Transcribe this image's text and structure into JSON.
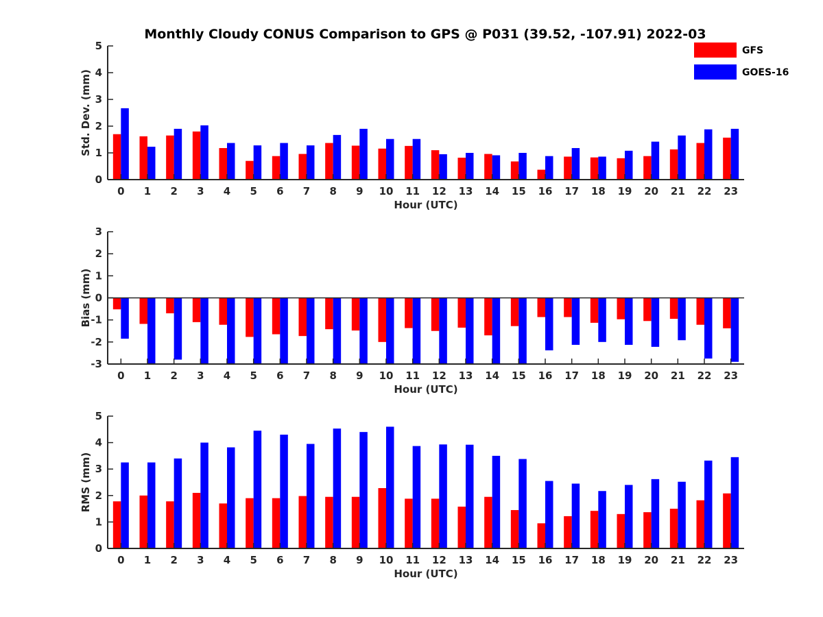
{
  "title": "Monthly Cloudy CONUS Comparison to GPS @ P031 (39.52, -107.91) 2022-03",
  "legend": {
    "placement": "top-right",
    "entries": [
      {
        "name": "GFS",
        "color": "#ff0000"
      },
      {
        "name": "GOES-16",
        "color": "#0000ff"
      }
    ]
  },
  "chart_data": [
    {
      "type": "bar",
      "xlabel": "Hour (UTC)",
      "ylabel": "Std. Dev. (mm)",
      "ylim": [
        0,
        5
      ],
      "yticks": [
        0,
        1,
        2,
        3,
        4,
        5
      ],
      "categories": [
        "0",
        "1",
        "2",
        "3",
        "4",
        "5",
        "6",
        "7",
        "8",
        "9",
        "10",
        "11",
        "12",
        "13",
        "14",
        "15",
        "16",
        "17",
        "18",
        "19",
        "20",
        "21",
        "22",
        "23"
      ],
      "series": [
        {
          "name": "GFS",
          "color": "#ff0000",
          "values": [
            1.7,
            1.62,
            1.65,
            1.8,
            1.18,
            0.7,
            0.88,
            0.96,
            1.37,
            1.27,
            1.16,
            1.26,
            1.1,
            0.82,
            0.96,
            0.68,
            0.37,
            0.86,
            0.83,
            0.8,
            0.88,
            1.13,
            1.37,
            1.57
          ]
        },
        {
          "name": "GOES-16",
          "color": "#0000ff",
          "values": [
            2.67,
            1.23,
            1.9,
            2.03,
            1.37,
            1.28,
            1.37,
            1.28,
            1.67,
            1.9,
            1.52,
            1.52,
            0.95,
            1.0,
            0.91,
            1.0,
            0.88,
            1.18,
            0.86,
            1.08,
            1.42,
            1.65,
            1.88,
            1.9
          ]
        }
      ]
    },
    {
      "type": "bar",
      "xlabel": "Hour (UTC)",
      "ylabel": "Bias (mm)",
      "ylim": [
        -3,
        3
      ],
      "yticks": [
        -3,
        -2,
        -1,
        0,
        1,
        2,
        3
      ],
      "categories": [
        "0",
        "1",
        "2",
        "3",
        "4",
        "5",
        "6",
        "7",
        "8",
        "9",
        "10",
        "11",
        "12",
        "13",
        "14",
        "15",
        "16",
        "17",
        "18",
        "19",
        "20",
        "21",
        "22",
        "23"
      ],
      "series": [
        {
          "name": "GFS",
          "color": "#ff0000",
          "values": [
            -0.52,
            -1.18,
            -0.7,
            -1.1,
            -1.22,
            -1.77,
            -1.65,
            -1.73,
            -1.42,
            -1.48,
            -2.0,
            -1.37,
            -1.5,
            -1.35,
            -1.7,
            -1.28,
            -0.87,
            -0.87,
            -1.13,
            -0.97,
            -1.05,
            -0.95,
            -1.22,
            -1.38
          ]
        },
        {
          "name": "GOES-16",
          "color": "#0000ff",
          "values": [
            -1.85,
            -3.0,
            -2.8,
            -3.0,
            -3.0,
            -3.0,
            -3.0,
            -3.0,
            -3.0,
            -3.0,
            -3.0,
            -3.0,
            -3.0,
            -3.0,
            -3.0,
            -3.0,
            -2.38,
            -2.13,
            -2.0,
            -2.13,
            -2.22,
            -1.92,
            -2.75,
            -2.9
          ]
        }
      ]
    },
    {
      "type": "bar",
      "xlabel": "Hour (UTC)",
      "ylabel": "RMS (mm)",
      "ylim": [
        0,
        5
      ],
      "yticks": [
        0,
        1,
        2,
        3,
        4,
        5
      ],
      "categories": [
        "0",
        "1",
        "2",
        "3",
        "4",
        "5",
        "6",
        "7",
        "8",
        "9",
        "10",
        "11",
        "12",
        "13",
        "14",
        "15",
        "16",
        "17",
        "18",
        "19",
        "20",
        "21",
        "22",
        "23"
      ],
      "series": [
        {
          "name": "GFS",
          "color": "#ff0000",
          "values": [
            1.78,
            2.0,
            1.78,
            2.1,
            1.7,
            1.9,
            1.9,
            1.98,
            1.95,
            1.95,
            2.28,
            1.88,
            1.88,
            1.58,
            1.95,
            1.45,
            0.95,
            1.22,
            1.42,
            1.3,
            1.37,
            1.5,
            1.82,
            2.08
          ]
        },
        {
          "name": "GOES-16",
          "color": "#0000ff",
          "values": [
            3.25,
            3.25,
            3.4,
            4.0,
            3.82,
            4.45,
            4.3,
            3.95,
            4.53,
            4.4,
            4.6,
            3.87,
            3.93,
            3.92,
            3.5,
            3.38,
            2.55,
            2.45,
            2.17,
            2.4,
            2.62,
            2.52,
            3.32,
            3.45
          ]
        }
      ]
    }
  ]
}
